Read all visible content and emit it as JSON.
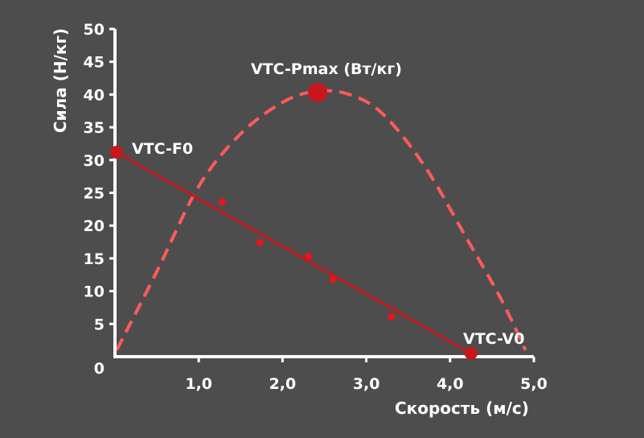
{
  "chart_data": {
    "type": "scatter",
    "xlabel": "Скорость (м/с)",
    "ylabel": "Сила (Н/кг)",
    "xlim": [
      0,
      5
    ],
    "ylim": [
      0,
      50
    ],
    "x_ticks": [
      "1,0",
      "2,0",
      "3,0",
      "4,0",
      "5,0"
    ],
    "y_ticks": [
      "0",
      "5",
      "10",
      "15",
      "20",
      "25",
      "30",
      "35",
      "40",
      "45",
      "50"
    ],
    "grid": false,
    "colors": {
      "background": "#4d4d4d",
      "axis": "#ffffff",
      "force_line": "#c8161d",
      "points": "#e8151b",
      "power_curve": "#ff5b5b"
    },
    "series": [
      {
        "kind": "scatter",
        "points": [
          [
            1.28,
            23.6
          ],
          [
            1.73,
            17.4
          ],
          [
            2.31,
            15.3
          ],
          [
            2.6,
            11.8
          ],
          [
            3.3,
            6.1
          ]
        ]
      },
      {
        "kind": "line",
        "points": [
          [
            0.02,
            31.2
          ],
          [
            4.25,
            0.5
          ]
        ]
      },
      {
        "kind": "dashed-curve",
        "points": [
          [
            0.02,
            1.0
          ],
          [
            0.5,
            13.0
          ],
          [
            1.0,
            26.0
          ],
          [
            1.5,
            34.0
          ],
          [
            2.0,
            38.8
          ],
          [
            2.4,
            40.5
          ],
          [
            2.8,
            40.0
          ],
          [
            3.2,
            37.0
          ],
          [
            3.7,
            29.0
          ],
          [
            4.2,
            18.0
          ],
          [
            4.6,
            9.0
          ],
          [
            4.9,
            1.0
          ]
        ]
      }
    ],
    "annotations": [
      {
        "id": "f0",
        "label": "VTC-F0",
        "x": 0.02,
        "y": 31.2
      },
      {
        "id": "pmax",
        "label": "VTC-Pmax (Вт/кг)",
        "x": 2.42,
        "y": 40.3
      },
      {
        "id": "v0",
        "label": "VTC-V0",
        "x": 4.25,
        "y": 0.5
      }
    ]
  }
}
